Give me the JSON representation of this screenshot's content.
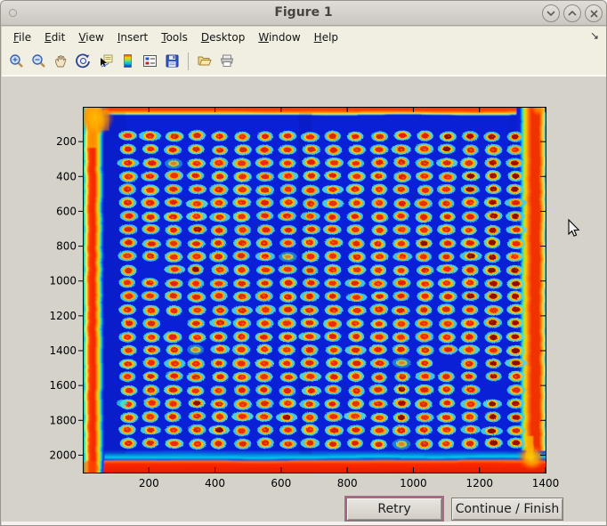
{
  "window": {
    "title": "Figure 1"
  },
  "titlebar_buttons": {
    "minimize": "chevron-down",
    "maximize": "chevron-up",
    "close": "x"
  },
  "menu": {
    "items": [
      "File",
      "Edit",
      "View",
      "Insert",
      "Tools",
      "Desktop",
      "Window",
      "Help"
    ],
    "overflow_arrow": "↘"
  },
  "toolbar": {
    "icons": [
      "zoom-in",
      "zoom-out",
      "pan-hand",
      "rotate-3d",
      "data-cursor",
      "colorbar",
      "legend",
      "save",
      "open-folder",
      "print"
    ]
  },
  "plot": {
    "type": "heatmap-image",
    "description": "Microarray plate scan rendered with jet colormap: regular grid of red/yellow spots with cyan halos on deep blue background, red-orange saturated edges",
    "x_ticks": [
      200,
      400,
      600,
      800,
      1000,
      1200,
      1400
    ],
    "y_ticks": [
      200,
      400,
      600,
      800,
      1000,
      1200,
      1400,
      1600,
      1800,
      2000
    ],
    "x_range": [
      0,
      1400
    ],
    "y_range": [
      0,
      2100
    ],
    "heatmap": {
      "cols": 18,
      "rows": 24,
      "field_blue": "#0A20D6",
      "halo_cyan": "#4CD8E8",
      "ring_yellow": "#FFBE00",
      "center_red": "#E22310",
      "center_dark": "#8B0E00"
    }
  },
  "buttons": {
    "retry": "Retry",
    "continue": "Continue / Finish"
  }
}
